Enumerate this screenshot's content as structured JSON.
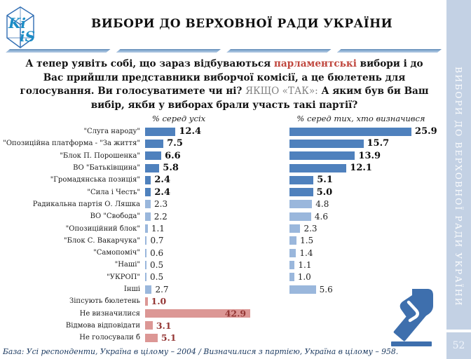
{
  "header": {
    "title": "ВИБОРИ ДО ВЕРХОВНОЇ РАДИ УКРАЇНИ",
    "logo_icon": "kiis-cube-logo",
    "logo_text_top": "Ki",
    "logo_text_bottom": "iS"
  },
  "question": {
    "pre": "А тепер уявіть собі, що зараз відбуваються ",
    "highlight": "парламентські",
    "mid": "  вибори і до Вас прийшли представники виборчої комісії, а це бюлетень для голосування. Ви голосуватимете чи ні? ",
    "condition": "ЯКЩО «ТАК»:",
    "post": " А яким був би Ваш вибір, якби у виборах брали участь такі партії?"
  },
  "chart_data": {
    "type": "bar",
    "orientation": "horizontal",
    "column_headers": [
      "% серед усіх",
      "% серед тих, хто визначився"
    ],
    "categories": [
      "\"Слуга народу\"",
      "\"Опозиційна платформа - \"За життя\"",
      "\"Блок П. Порошенка\"",
      "ВО \"Батьківщина\"",
      "\"Громадянська позиція\"",
      "\"Сила і Честь\"",
      "Радикальна партія О. Ляшка",
      "ВО \"Свобода\"",
      "\"Опозиційний блок\"",
      "\"Блок С. Вакарчука\"",
      "\"Самопоміч\"",
      "\"Наші\"",
      "\"УКРОП\"",
      "Інші",
      "Зіпсують бюлетень",
      "Не визначилися",
      "Відмова відповідати",
      "Не голосували б"
    ],
    "series": [
      {
        "name": "% серед усіх",
        "values": [
          12.4,
          7.5,
          6.6,
          5.8,
          2.4,
          2.4,
          2.3,
          2.2,
          1.1,
          0.7,
          0.6,
          0.5,
          0.5,
          2.7,
          1.0,
          42.9,
          3.1,
          5.1
        ]
      },
      {
        "name": "% серед тих, хто визначився",
        "values": [
          25.9,
          15.7,
          13.9,
          12.1,
          5.1,
          5.0,
          4.8,
          4.6,
          2.3,
          1.5,
          1.4,
          1.1,
          1.0,
          5.6,
          null,
          null,
          null,
          null
        ]
      }
    ],
    "row_styles": [
      "dark",
      "dark",
      "dark",
      "dark",
      "dark",
      "dark",
      "light",
      "light",
      "light",
      "light",
      "light",
      "light",
      "light",
      "light",
      "pink",
      "pink",
      "pink",
      "pink"
    ],
    "value_inside_rows": [
      15
    ],
    "grid": false,
    "legend_position": "column-headers",
    "colors": {
      "dark": "#4f81bd",
      "light": "#9ab7dc",
      "pink": "#dc9795",
      "value_red": "#943735",
      "accent_red": "#c0473e",
      "sidebar": "#c3d1e4"
    }
  },
  "footer": {
    "base_note": "База: Усі респонденти, Україна в цілому – 2004 / Визначилися з партією, Україна в цілому – 958."
  },
  "sidebar": {
    "vertical_title": "ВИБОРИ ДО ВЕРХОВНОЇ РАДИ УКРАЇНИ",
    "page_number": "52"
  },
  "icons": {
    "ballot": "voting-hand-icon"
  }
}
